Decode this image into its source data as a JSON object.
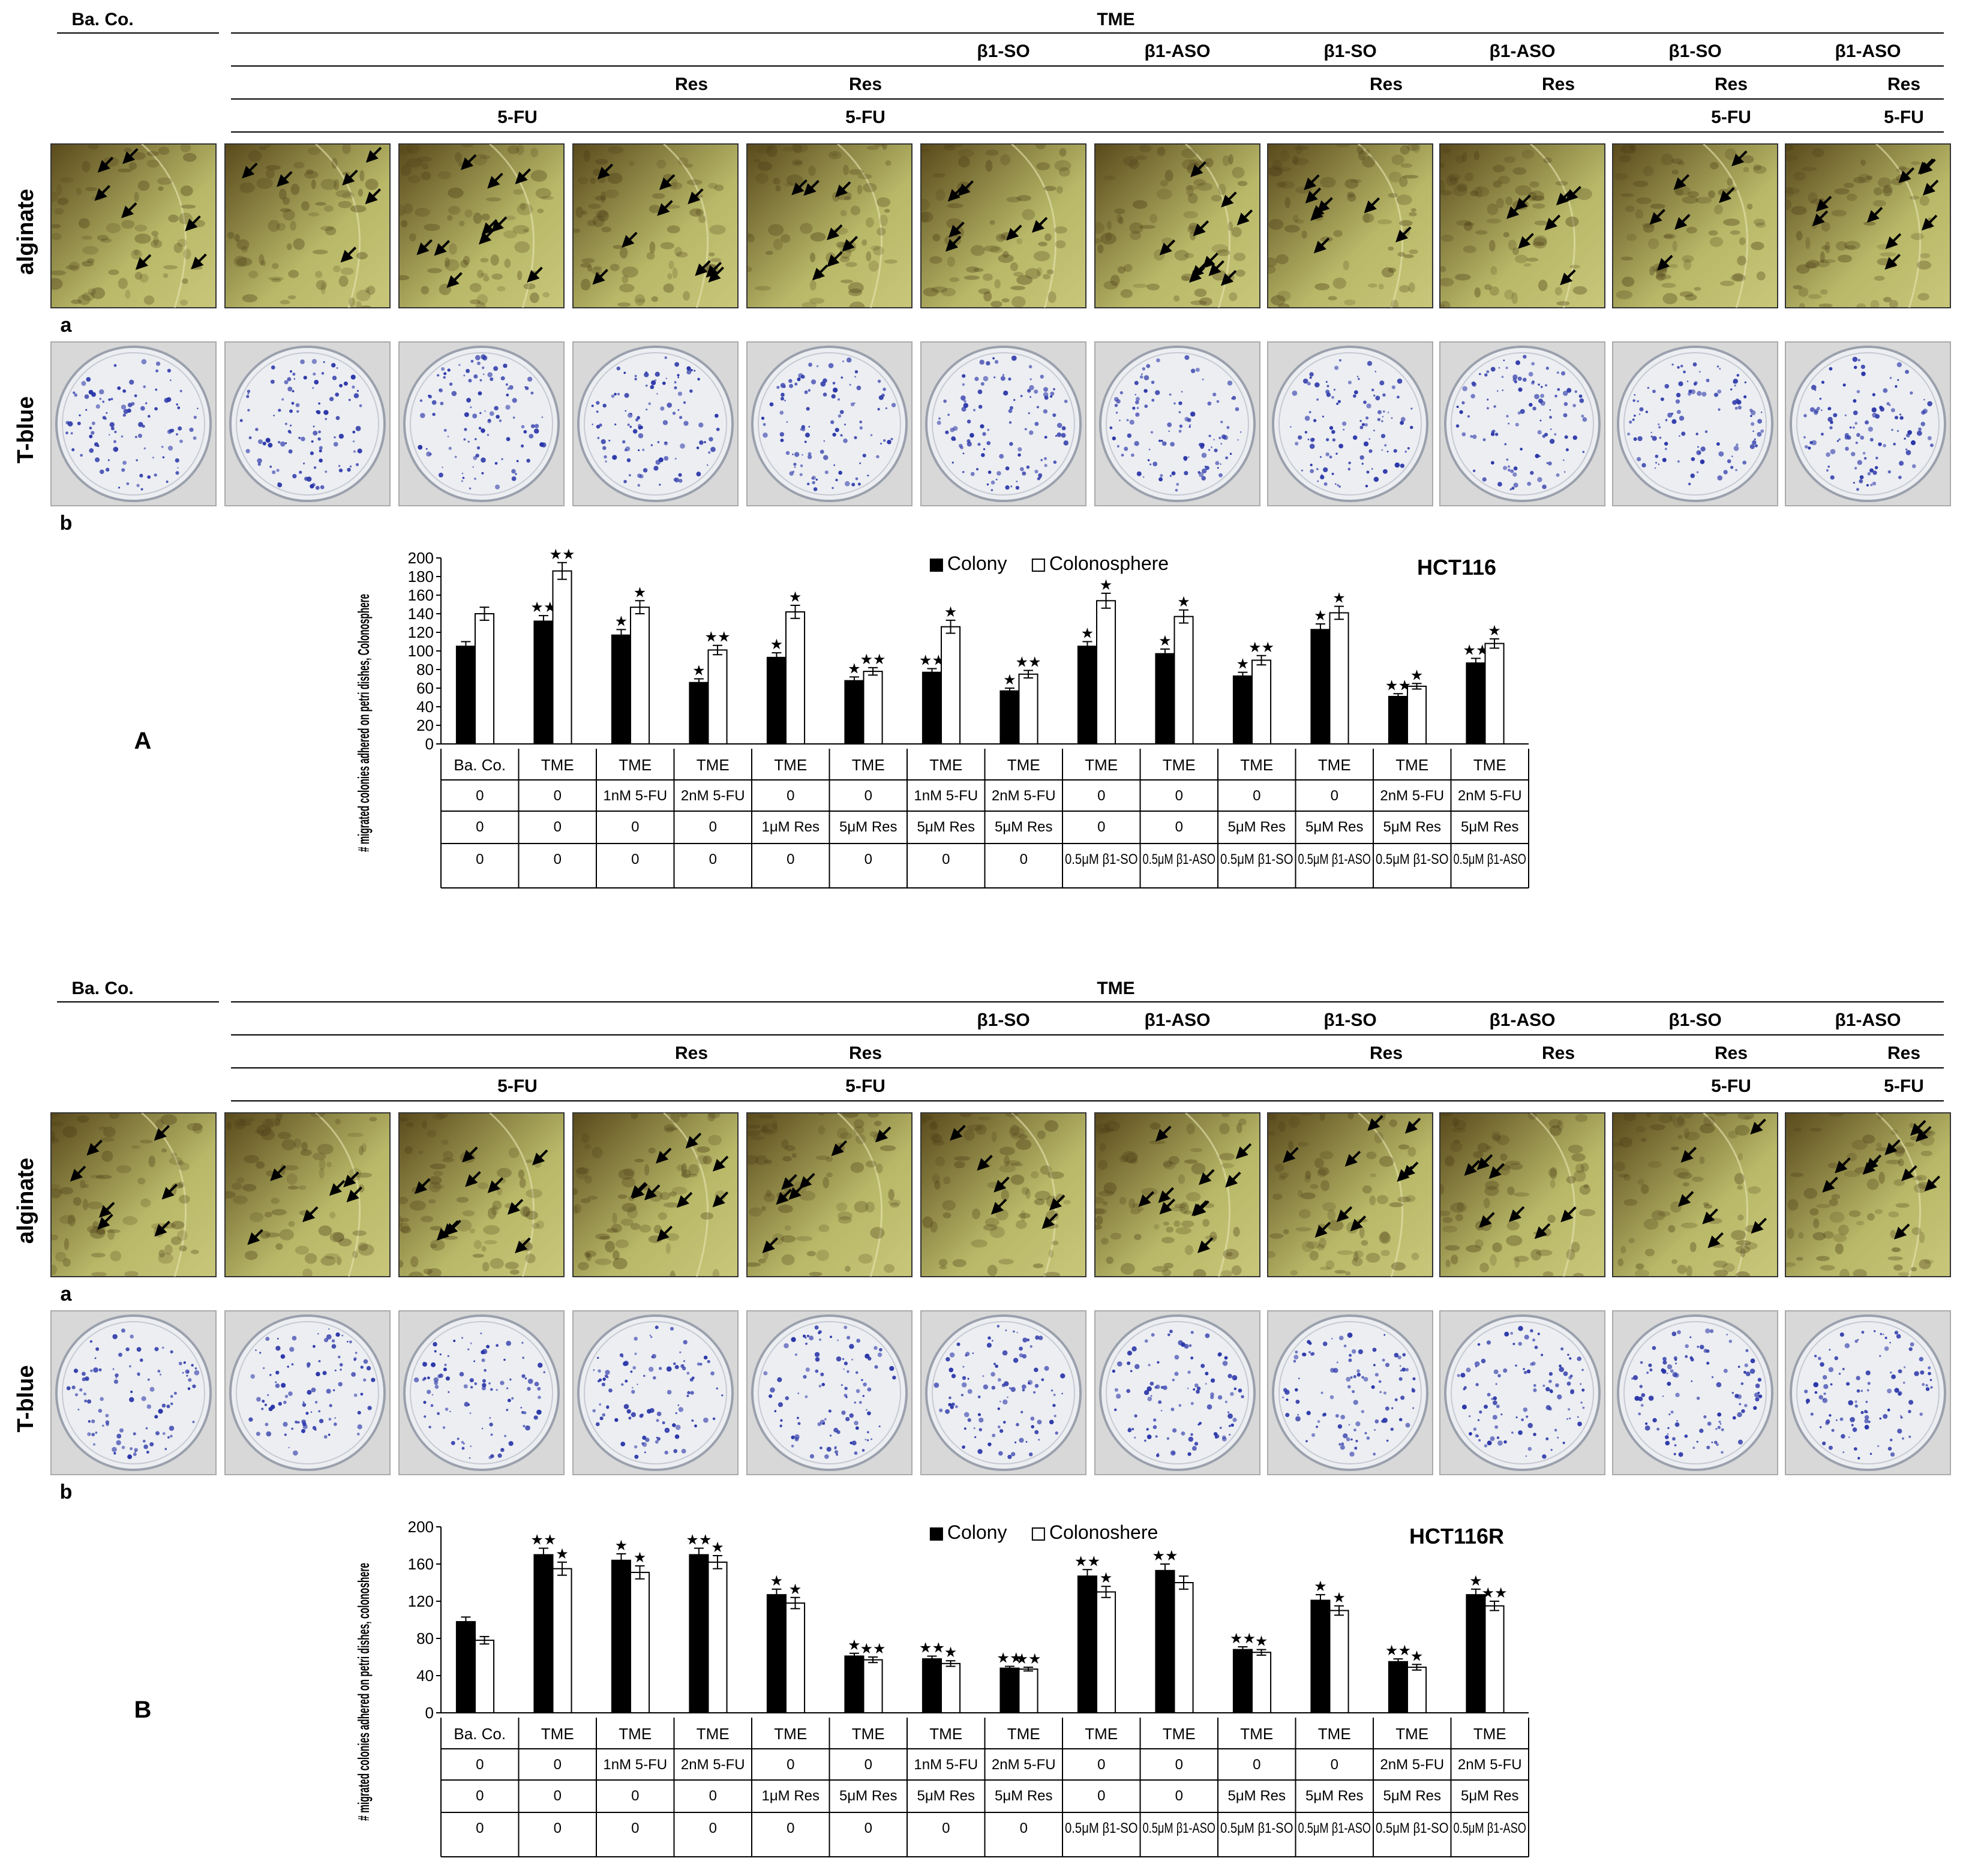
{
  "colors": {
    "colony": "#000000",
    "colonosphere": "#ffffff",
    "alginate_light": "#b8b868",
    "alginate_dark": "#5a4a1c",
    "stain": "#2a36a8",
    "dish": "#eceef2",
    "frame": "#d8d8d8"
  },
  "icons": {
    "arrow": "arrow-icon"
  },
  "conditions": {
    "baco": "Ba. Co.",
    "tme": "TME",
    "b1so": "β1-SO",
    "b1aso": "β1-ASO",
    "res": "Res",
    "fu": "5-FU"
  },
  "row_labels": {
    "alginate": "alginate",
    "tblue": "T-blue"
  },
  "panels": [
    {
      "letter": "A",
      "sub_a": "a",
      "sub_b": "b",
      "chart_data": {
        "type": "bar",
        "title": "HCT116",
        "ylabel": "# migrated colonies adhered on petri dishes, Colonosphere",
        "ylim": [
          0,
          200
        ],
        "yticks": [
          0,
          20,
          40,
          60,
          80,
          100,
          120,
          140,
          160,
          180,
          200
        ],
        "legend_position": "top-center",
        "categories": [
          "Ba. Co.",
          "TME",
          "TME",
          "TME",
          "TME",
          "TME",
          "TME",
          "TME",
          "TME",
          "TME",
          "TME",
          "TME",
          "TME",
          "TME"
        ],
        "table_rows": [
          [
            "0",
            "0",
            "1nM  5-FU",
            "2nM  5-FU",
            "0",
            "0",
            "1nM  5-FU",
            "2nM  5-FU",
            "0",
            "0",
            "0",
            "0",
            "2nM  5-FU",
            "2nM  5-FU"
          ],
          [
            "0",
            "0",
            "0",
            "0",
            "1μM Res",
            "5μM Res",
            "5μM Res",
            "5μM Res",
            "0",
            "0",
            "5μM Res",
            "5μM Res",
            "5μM Res",
            "5μM Res"
          ],
          [
            "0",
            "0",
            "0",
            "0",
            "0",
            "0",
            "0",
            "0",
            "0.5μM  β1-SO",
            "0.5μM  β1-ASO",
            "0.5μM  β1-SO",
            "0.5μM  β1-ASO",
            "0.5μM  β1-SO",
            "0.5μM  β1-ASO"
          ]
        ],
        "series": [
          {
            "name": "Colony",
            "values": [
              105,
              132,
              117,
              66,
              93,
              68,
              77,
              57,
              105,
              97,
              73,
              123,
              51,
              87
            ],
            "errors": [
              5,
              6,
              6,
              4,
              5,
              4,
              4,
              3,
              5,
              5,
              4,
              6,
              3,
              5
            ],
            "stars": [
              "",
              "★★",
              "★",
              "★",
              "★",
              "★",
              "★★",
              "★",
              "★",
              "★",
              "★",
              "★",
              "★★",
              "★★"
            ]
          },
          {
            "name": "Colonosphere",
            "values": [
              140,
              186,
              147,
              101,
              142,
              78,
              126,
              75,
              154,
              137,
              90,
              141,
              62,
              108
            ],
            "errors": [
              7,
              9,
              7,
              5,
              7,
              4,
              7,
              4,
              8,
              7,
              5,
              7,
              3,
              5
            ],
            "stars": [
              "",
              "★★",
              "★",
              "★★",
              "★",
              "★★",
              "★",
              "★★",
              "★",
              "★",
              "★★",
              "★",
              "★",
              "★"
            ]
          }
        ]
      }
    },
    {
      "letter": "B",
      "sub_a": "a",
      "sub_b": "b",
      "chart_data": {
        "type": "bar",
        "title": "HCT116R",
        "ylabel": "# migrated colonies adhered on petri dishes, colonoshere",
        "ylim": [
          0,
          200
        ],
        "yticks": [
          0,
          40,
          80,
          120,
          160,
          200
        ],
        "legend_position": "top-center",
        "categories": [
          "Ba. Co.",
          "TME",
          "TME",
          "TME",
          "TME",
          "TME",
          "TME",
          "TME",
          "TME",
          "TME",
          "TME",
          "TME",
          "TME",
          "TME"
        ],
        "table_rows": [
          [
            "0",
            "0",
            "1nM  5-FU",
            "2nM  5-FU",
            "0",
            "0",
            "1nM  5-FU",
            "2nM  5-FU",
            "0",
            "0",
            "0",
            "0",
            "2nM  5-FU",
            "2nM  5-FU"
          ],
          [
            "0",
            "0",
            "0",
            "0",
            "1μM Res",
            "5μM Res",
            "5μM Res",
            "5μM Res",
            "0",
            "0",
            "5μM Res",
            "5μM Res",
            "5μM Res",
            "5μM Res"
          ],
          [
            "0",
            "0",
            "0",
            "0",
            "0",
            "0",
            "0",
            "0",
            "0.5μM  β1-SO",
            "0.5μM  β1-ASO",
            "0.5μM  β1-SO",
            "0.5μM  β1-ASO",
            "0.5μM  β1-SO",
            "0.5μM  β1-ASO"
          ]
        ],
        "series": [
          {
            "name": "Colony",
            "values": [
              98,
              170,
              164,
              170,
              127,
              61,
              58,
              48,
              147,
              153,
              68,
              121,
              55,
              127
            ],
            "errors": [
              5,
              7,
              7,
              7,
              6,
              3,
              3,
              2,
              7,
              7,
              3,
              6,
              3,
              6
            ],
            "stars": [
              "",
              "★★",
              "★",
              "★★",
              "★",
              "★",
              "★★",
              "★★",
              "★★",
              "★★",
              "★★",
              "★",
              "★★",
              "★"
            ]
          },
          {
            "name": "Colonoshere",
            "values": [
              78,
              155,
              151,
              162,
              118,
              57,
              53,
              47,
              130,
              140,
              65,
              110,
              49,
              115
            ],
            "errors": [
              4,
              7,
              7,
              7,
              6,
              3,
              3,
              2,
              6,
              7,
              3,
              5,
              3,
              5
            ],
            "stars": [
              "",
              "★",
              "★",
              "★",
              "★",
              "★★",
              "★",
              "★★",
              "★",
              "",
              "★",
              "★",
              "★",
              "★★"
            ]
          }
        ]
      }
    }
  ]
}
